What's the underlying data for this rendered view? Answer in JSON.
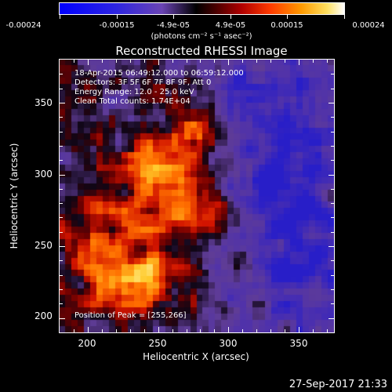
{
  "colorbar": {
    "labels": [
      "-0.00024",
      "-0.00015",
      "-4.9e-05",
      "4.9e-05",
      "0.00015",
      "0.00024"
    ],
    "units": "(photons cm⁻² s⁻¹ asec⁻²)"
  },
  "plot": {
    "title": "Reconstructed RHESSI Image",
    "xlabel": "Heliocentric X (arcsec)",
    "ylabel": "Heliocentric Y (arcsec)",
    "xticks": [
      "200",
      "250",
      "300",
      "350"
    ],
    "yticks": [
      "200",
      "250",
      "300",
      "350"
    ],
    "xlim": [
      180,
      375
    ],
    "ylim": [
      190,
      380
    ]
  },
  "info": {
    "time": "18-Apr-2015 06:49:12.000 to 06:59:12.000",
    "detectors": "Detectors: 3F 5F 6F 7F 8F 9F, Att 0",
    "energy": "Energy Range: 12.0 - 25.0 keV",
    "clean": "Clean     Total counts: 1.74E+04",
    "peak": "Position of Peak = [255,266]"
  },
  "footer": {
    "date": "27-Sep-2017 21:33"
  },
  "colors": {
    "background": "#000000",
    "axes": "#ffffff",
    "colormap": [
      "#0000ff",
      "#3a2fd0",
      "#6a44b4",
      "#000000",
      "#8b0000",
      "#ff2a00",
      "#ff8a00",
      "#ffd040",
      "#ffffc0"
    ]
  }
}
